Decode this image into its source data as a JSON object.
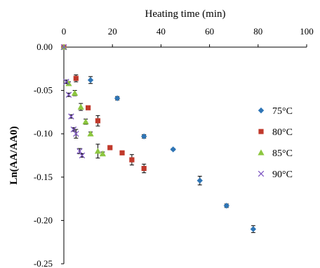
{
  "chart_data": {
    "type": "scatter",
    "title": "",
    "xlabel": "Heating time (min)",
    "ylabel": "Ln(AA/AA0)",
    "xlim": [
      0,
      100
    ],
    "ylim": [
      -0.25,
      0.0
    ],
    "x_ticks": [
      "0",
      "20",
      "40",
      "60",
      "80",
      "100"
    ],
    "y_ticks": [
      "0.00",
      "-0.05",
      "-0.10",
      "-0.15",
      "-0.20",
      "-0.25"
    ],
    "x_axis_position": "top",
    "grid": false,
    "legend_position": "right",
    "series": [
      {
        "name": "75°C",
        "marker": "diamond",
        "color": "#2e75b6",
        "points": [
          {
            "x": 0,
            "y": 0.0,
            "err": 0.0
          },
          {
            "x": 11,
            "y": -0.038,
            "err": 0.004
          },
          {
            "x": 22,
            "y": -0.059,
            "err": 0.002
          },
          {
            "x": 33,
            "y": -0.103,
            "err": 0.002
          },
          {
            "x": 45,
            "y": -0.118,
            "err": 0.001
          },
          {
            "x": 56,
            "y": -0.154,
            "err": 0.005
          },
          {
            "x": 67,
            "y": -0.183,
            "err": 0.002
          },
          {
            "x": 78,
            "y": -0.21,
            "err": 0.004
          }
        ]
      },
      {
        "name": "80°C",
        "marker": "square",
        "color": "#c0392b",
        "points": [
          {
            "x": 0,
            "y": 0.0,
            "err": 0.0
          },
          {
            "x": 5,
            "y": -0.036,
            "err": 0.004
          },
          {
            "x": 10,
            "y": -0.07,
            "err": 0.001
          },
          {
            "x": 14,
            "y": -0.085,
            "err": 0.006
          },
          {
            "x": 19,
            "y": -0.116,
            "err": 0.001
          },
          {
            "x": 24,
            "y": -0.122,
            "err": 0.002
          },
          {
            "x": 28,
            "y": -0.13,
            "err": 0.006
          },
          {
            "x": 33,
            "y": -0.14,
            "err": 0.005
          }
        ]
      },
      {
        "name": "85°C",
        "marker": "triangle",
        "color": "#8cc63f",
        "points": [
          {
            "x": 0,
            "y": 0.0,
            "err": 0.0
          },
          {
            "x": 2,
            "y": -0.042,
            "err": 0.002
          },
          {
            "x": 4.5,
            "y": -0.053,
            "err": 0.003
          },
          {
            "x": 7,
            "y": -0.069,
            "err": 0.004
          },
          {
            "x": 9,
            "y": -0.086,
            "err": 0.003
          },
          {
            "x": 11,
            "y": -0.1,
            "err": 0.002
          },
          {
            "x": 14,
            "y": -0.12,
            "err": 0.008
          },
          {
            "x": 16,
            "y": -0.123,
            "err": 0.002
          }
        ]
      },
      {
        "name": "90°C",
        "marker": "x",
        "color": "#7e57c2",
        "points": [
          {
            "x": 0,
            "y": 0.0,
            "err": 0.0
          },
          {
            "x": 1,
            "y": -0.04,
            "err": 0.002
          },
          {
            "x": 2,
            "y": -0.055,
            "err": 0.002
          },
          {
            "x": 3,
            "y": -0.08,
            "err": 0.002
          },
          {
            "x": 4,
            "y": -0.095,
            "err": 0.002
          },
          {
            "x": 5,
            "y": -0.1,
            "err": 0.005
          },
          {
            "x": 6.5,
            "y": -0.12,
            "err": 0.003
          },
          {
            "x": 7.5,
            "y": -0.125,
            "err": 0.002
          }
        ]
      }
    ]
  }
}
